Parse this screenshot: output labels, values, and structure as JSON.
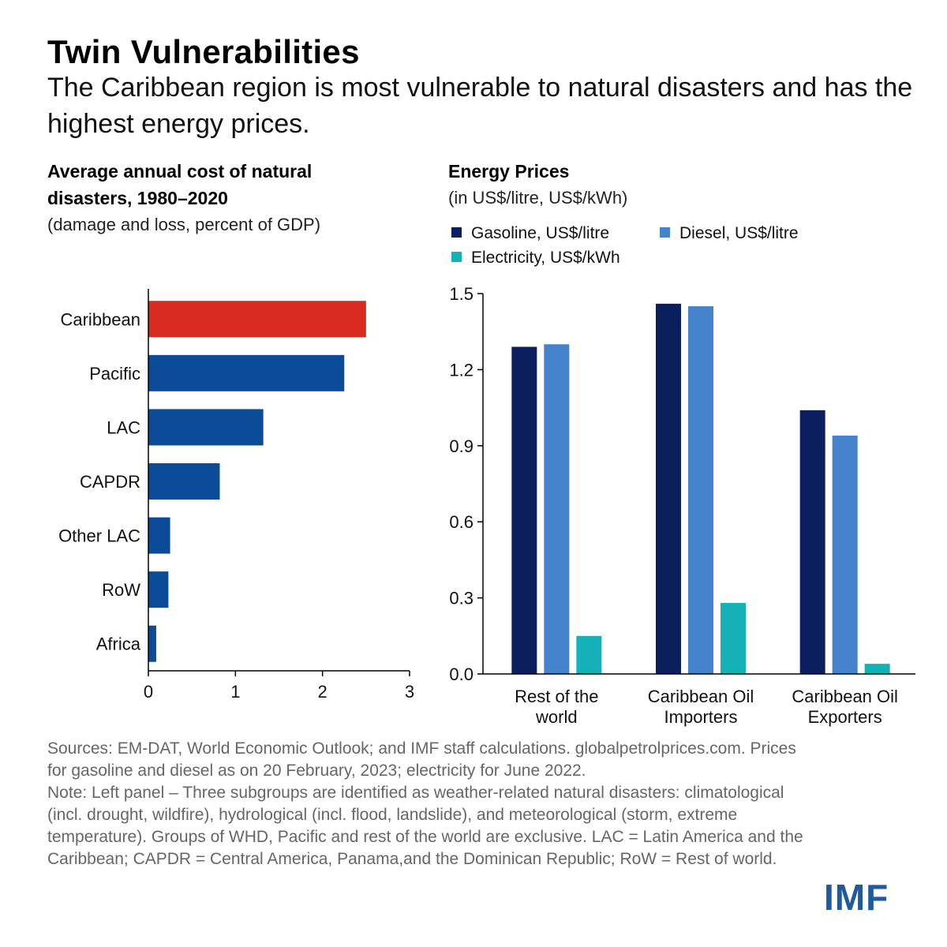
{
  "title": "Twin Vulnerabilities",
  "subtitle": "The Caribbean region is most vulnerable to natural disasters and has the highest energy prices.",
  "colors": {
    "highlight": "#d82a1e",
    "bar_blue": "#0a4c97",
    "gasoline": "#0b1f5e",
    "diesel": "#4584cd",
    "electricity": "#14b2b8",
    "logo": "#1f5a9c"
  },
  "chart_data": [
    {
      "type": "bar",
      "orientation": "horizontal",
      "title": "Average annual cost of natural disasters, 1980–2020",
      "subtitle": "(damage and loss, percent of GDP)",
      "categories": [
        "Caribbean",
        "Pacific",
        "LAC",
        "CAPDR",
        "Other LAC",
        "RoW",
        "Africa"
      ],
      "values": [
        2.5,
        2.25,
        1.32,
        0.82,
        0.25,
        0.23,
        0.09
      ],
      "highlight_category": "Caribbean",
      "xlim": [
        0,
        3
      ],
      "xticks": [
        "0",
        "1",
        "2",
        "3"
      ],
      "grid": false
    },
    {
      "type": "bar",
      "title": "Energy Prices",
      "subtitle": "(in US$/litre, US$/kWh)",
      "categories": [
        "Rest of the world",
        "Caribbean Oil Importers",
        "Caribbean Oil Exporters"
      ],
      "series": [
        {
          "name": "Gasoline, US$/litre",
          "values": [
            1.29,
            1.46,
            1.04
          ]
        },
        {
          "name": "Diesel, US$/litre",
          "values": [
            1.3,
            1.45,
            0.94
          ]
        },
        {
          "name": "Electricity, US$/kWh",
          "values": [
            0.15,
            0.28,
            0.04
          ]
        }
      ],
      "ylim": [
        0,
        1.5
      ],
      "yticks": [
        "0.0",
        "0.3",
        "0.6",
        "0.9",
        "1.2",
        "1.5"
      ],
      "legend": "top",
      "grid": false
    }
  ],
  "footnote": {
    "sources": "Sources: EM-DAT, World Economic Outlook; and IMF staff calculations. globalpetrolprices.com. Prices for gasoline and diesel as on 20 February, 2023; electricity for June 2022.",
    "note": "Note: Left panel – Three subgroups are identified as weather-related natural disasters: climatological (incl. drought, wildfire), hydrological (incl. flood, landslide), and meteorological (storm, extreme temperature). Groups of WHD, Pacific and rest of the world are exclusive. LAC = Latin America and the Caribbean; CAPDR = Central America, Panama,and the Dominican Republic; RoW = Rest of world."
  },
  "logo": "IMF"
}
